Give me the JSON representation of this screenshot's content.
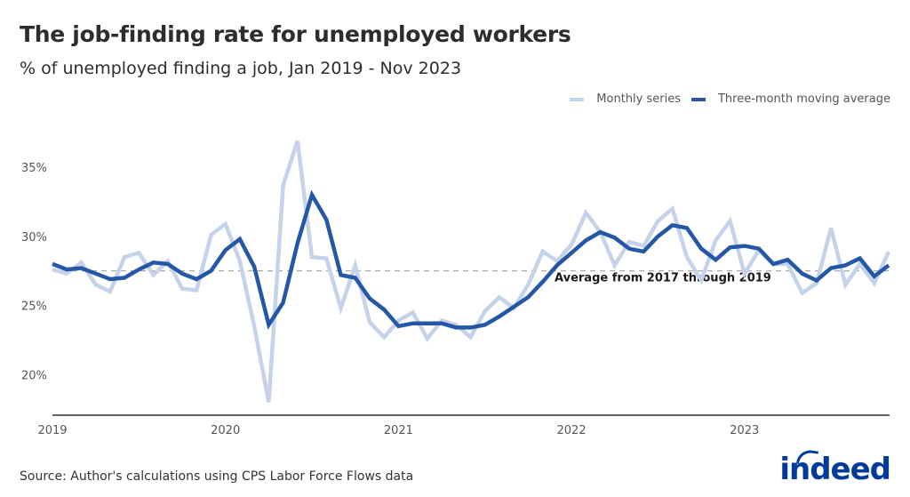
{
  "header": {
    "title": "The job-finding rate for unemployed workers",
    "subtitle": "% of unemployed finding a job, Jan 2019 - Nov 2023"
  },
  "legend": {
    "monthly_label": "Monthly series",
    "ma_label": "Three-month moving average",
    "monthly_color": "#c5d3ea",
    "ma_color": "#2557a7"
  },
  "footer": {
    "source": "Source: Author's calculations using CPS Labor Force Flows data",
    "logo": "indeed"
  },
  "chart_data": {
    "type": "line",
    "title": "The job-finding rate for unemployed workers",
    "subtitle": "% of unemployed finding a job, Jan 2019 - Nov 2023",
    "xlabel": "",
    "ylabel": "",
    "x_ticks": [
      "2019",
      "2020",
      "2021",
      "2022",
      "2023"
    ],
    "y_ticks": [
      "20%",
      "25%",
      "30%",
      "35%"
    ],
    "ylim": [
      17,
      38
    ],
    "grid": false,
    "legend_position": "top-right",
    "reference_line": {
      "value": 27.5,
      "label": "Average from 2017 through 2019",
      "style": "dashed"
    },
    "x": [
      "2019-01",
      "2019-02",
      "2019-03",
      "2019-04",
      "2019-05",
      "2019-06",
      "2019-07",
      "2019-08",
      "2019-09",
      "2019-10",
      "2019-11",
      "2019-12",
      "2020-01",
      "2020-02",
      "2020-03",
      "2020-04",
      "2020-05",
      "2020-06",
      "2020-07",
      "2020-08",
      "2020-09",
      "2020-10",
      "2020-11",
      "2020-12",
      "2021-01",
      "2021-02",
      "2021-03",
      "2021-04",
      "2021-05",
      "2021-06",
      "2021-07",
      "2021-08",
      "2021-09",
      "2021-10",
      "2021-11",
      "2021-12",
      "2022-01",
      "2022-02",
      "2022-03",
      "2022-04",
      "2022-05",
      "2022-06",
      "2022-07",
      "2022-08",
      "2022-09",
      "2022-10",
      "2022-11",
      "2022-12",
      "2023-01",
      "2023-02",
      "2023-03",
      "2023-04",
      "2023-05",
      "2023-06",
      "2023-07",
      "2023-08",
      "2023-09",
      "2023-10",
      "2023-11"
    ],
    "series": [
      {
        "name": "Monthly series",
        "color": "#c5d3ea",
        "values": [
          27.6,
          27.3,
          28.1,
          26.5,
          26.0,
          28.5,
          28.8,
          27.2,
          28.2,
          26.2,
          26.1,
          30.1,
          30.9,
          28.2,
          23.5,
          18.0,
          33.7,
          36.9,
          28.5,
          28.4,
          24.8,
          27.9,
          23.8,
          22.7,
          23.9,
          24.5,
          22.6,
          23.9,
          23.6,
          22.7,
          24.6,
          25.6,
          24.8,
          26.5,
          28.9,
          28.2,
          29.4,
          31.7,
          30.3,
          27.9,
          29.6,
          29.3,
          31.1,
          32.0,
          28.5,
          26.8,
          29.7,
          31.1,
          27.3,
          29.0,
          28.0,
          28.0,
          25.9,
          26.6,
          30.6,
          26.5,
          28.0,
          26.6,
          28.9
        ]
      },
      {
        "name": "Three-month moving average",
        "color": "#2557a7",
        "values": [
          28.0,
          27.6,
          27.7,
          27.3,
          26.9,
          27.0,
          27.6,
          28.1,
          28.0,
          27.3,
          26.9,
          27.5,
          29.0,
          29.8,
          27.8,
          23.6,
          25.2,
          29.5,
          33.0,
          31.2,
          27.2,
          27.0,
          25.5,
          24.7,
          23.5,
          23.7,
          23.7,
          23.7,
          23.4,
          23.4,
          23.6,
          24.2,
          24.9,
          25.6,
          26.7,
          27.9,
          28.8,
          29.7,
          30.3,
          29.9,
          29.1,
          28.9,
          30.0,
          30.8,
          30.6,
          29.1,
          28.3,
          29.2,
          29.3,
          29.1,
          28.0,
          28.3,
          27.3,
          26.8,
          27.7,
          27.9,
          28.4,
          27.1,
          27.9
        ]
      }
    ]
  }
}
